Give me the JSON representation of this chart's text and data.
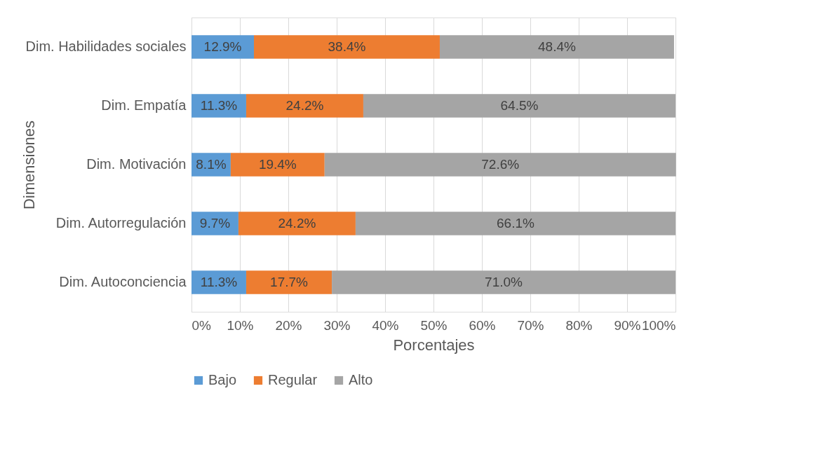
{
  "chart_data": {
    "type": "bar",
    "orientation": "horizontal",
    "stacked": true,
    "xlabel": "Porcentajes",
    "ylabel": "Dimensiones",
    "categories": [
      "Dim. Habilidades sociales",
      "Dim. Empatía",
      "Dim. Motivación",
      "Dim. Autorregulación",
      "Dim. Autoconciencia"
    ],
    "series": [
      {
        "name": "Bajo",
        "color": "#5b9bd5",
        "values": [
          12.9,
          11.3,
          8.1,
          9.7,
          11.3
        ],
        "value_labels": [
          "12.9%",
          "11.3%",
          "8.1%",
          "9.7%",
          "11.3%"
        ]
      },
      {
        "name": "Regular",
        "color": "#ed7d31",
        "values": [
          38.4,
          24.2,
          19.4,
          24.2,
          17.7
        ],
        "value_labels": [
          "38.4%",
          "24.2%",
          "19.4%",
          "24.2%",
          "17.7%"
        ]
      },
      {
        "name": "Alto",
        "color": "#a5a5a5",
        "values": [
          48.4,
          64.5,
          72.6,
          66.1,
          71.0
        ],
        "value_labels": [
          "48.4%",
          "64.5%",
          "72.6%",
          "66.1%",
          "71.0%"
        ]
      }
    ],
    "xlim": [
      0,
      100
    ],
    "xticks": [
      {
        "value": 0,
        "label": "0%"
      },
      {
        "value": 10,
        "label": "10%"
      },
      {
        "value": 20,
        "label": "20%"
      },
      {
        "value": 30,
        "label": "30%"
      },
      {
        "value": 40,
        "label": "40%"
      },
      {
        "value": 50,
        "label": "50%"
      },
      {
        "value": 60,
        "label": "60%"
      },
      {
        "value": 70,
        "label": "70%"
      },
      {
        "value": 80,
        "label": "80%"
      },
      {
        "value": 90,
        "label": "90%"
      },
      {
        "value": 100,
        "label": "100%"
      }
    ],
    "grid": "x",
    "legend": "bottom"
  }
}
